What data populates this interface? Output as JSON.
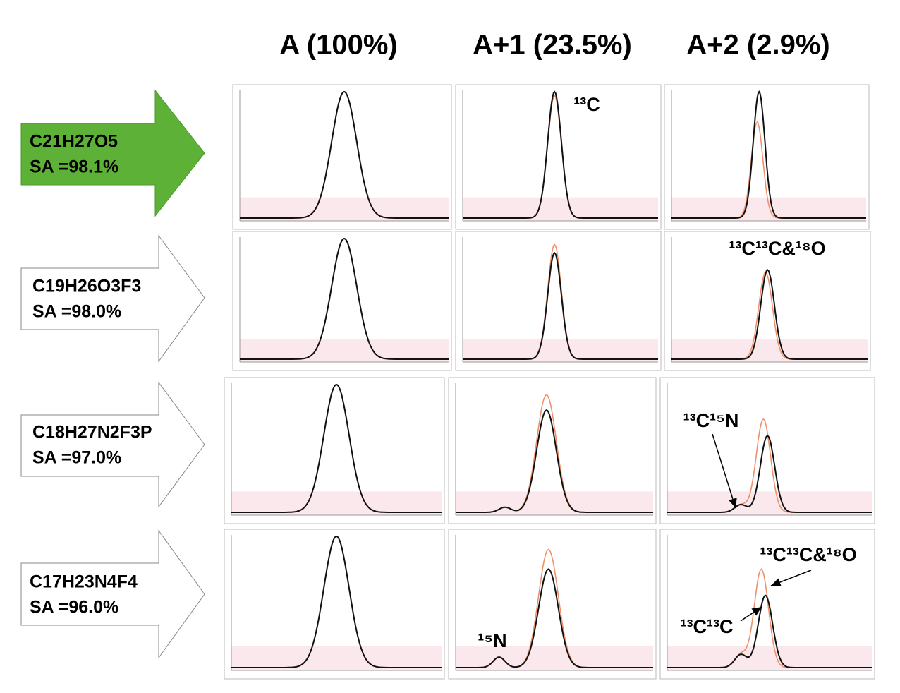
{
  "columns": [
    "A (100%)",
    "A+1 (23.5%)",
    "A+2 (2.9%)"
  ],
  "rows": [
    {
      "formula": "C21H27O5",
      "sa": "SA =98.1%"
    },
    {
      "formula": "C19H26O3F3",
      "sa": "SA =98.0%"
    },
    {
      "formula": "C18H27N2F3P",
      "sa": "SA =97.0%"
    },
    {
      "formula": "C17H23N4F4",
      "sa": "SA =96.0%"
    }
  ],
  "annotations": [
    "¹³C",
    "¹³C¹³C&¹⁸O",
    "¹³C¹⁵N",
    "¹⁵N",
    "¹³C¹³C&¹⁸O",
    "¹³C¹³C"
  ]
}
